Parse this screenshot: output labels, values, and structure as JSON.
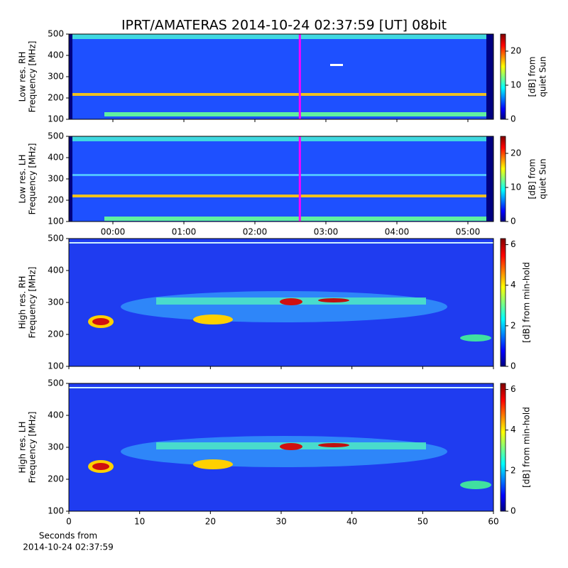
{
  "title": "IPRT/AMATERAS 2014-10-24 02:37:59 [UT]   08bit",
  "x_label": [
    "Seconds from",
    "2014-10-24 02:37:59"
  ],
  "chart_data": [
    {
      "type": "spectrogram",
      "y_label": [
        "Low res. RH",
        "Frequency [MHz]"
      ],
      "xlim": [
        -0.62,
        5.36
      ],
      "xticks": [
        0,
        1,
        2,
        3,
        4,
        5
      ],
      "xtick_labels": false,
      "ylim": [
        100,
        500
      ],
      "yticks": [
        100,
        200,
        300,
        400,
        500
      ],
      "marker": 2.633,
      "marker_color": "#ff00ff",
      "colorbar": {
        "label": [
          "[dB] from",
          "quiet Sun"
        ],
        "lim": [
          0,
          25
        ],
        "ticks": [
          0,
          10,
          20
        ]
      }
    },
    {
      "type": "spectrogram",
      "y_label": [
        "Low res. LH",
        "Frequency [MHz]"
      ],
      "xlim": [
        -0.62,
        5.36
      ],
      "xticks": [
        {
          "value": 0,
          "label": "00:00"
        },
        {
          "value": 1,
          "label": "01:00"
        },
        {
          "value": 2,
          "label": "02:00"
        },
        {
          "value": 3,
          "label": "03:00"
        },
        {
          "value": 4,
          "label": "04:00"
        },
        {
          "value": 5,
          "label": "05:00"
        }
      ],
      "xtick_labels": true,
      "ylim": [
        100,
        500
      ],
      "yticks": [
        100,
        200,
        300,
        400,
        500
      ],
      "marker": 2.633,
      "marker_color": "#ff00ff",
      "colorbar": {
        "label": [
          "[dB] from",
          "quiet Sun"
        ],
        "lim": [
          0,
          25
        ],
        "ticks": [
          0,
          10,
          20
        ]
      }
    },
    {
      "type": "spectrogram",
      "y_label": [
        "High res. RH",
        "Frequency [MHz]"
      ],
      "xlim": [
        0,
        60
      ],
      "xticks": [
        0,
        10,
        20,
        30,
        40,
        50,
        60
      ],
      "xtick_labels": false,
      "ylim": [
        100,
        500
      ],
      "yticks": [
        100,
        200,
        300,
        400,
        500
      ],
      "colorbar": {
        "label": [
          "[dB] from min-hold"
        ],
        "lim": [
          0,
          6.3
        ],
        "ticks": [
          0,
          2,
          4,
          6
        ]
      }
    },
    {
      "type": "spectrogram",
      "y_label": [
        "High res. LH",
        "Frequency [MHz]"
      ],
      "xlim": [
        0,
        60
      ],
      "xticks": [
        0,
        10,
        20,
        30,
        40,
        50,
        60
      ],
      "xtick_labels": true,
      "ylim": [
        100,
        500
      ],
      "yticks": [
        100,
        200,
        300,
        400,
        500
      ],
      "colorbar": {
        "label": [
          "[dB] from min-hold"
        ],
        "lim": [
          0,
          6.3
        ],
        "ticks": [
          0,
          2,
          4,
          6
        ]
      }
    }
  ]
}
